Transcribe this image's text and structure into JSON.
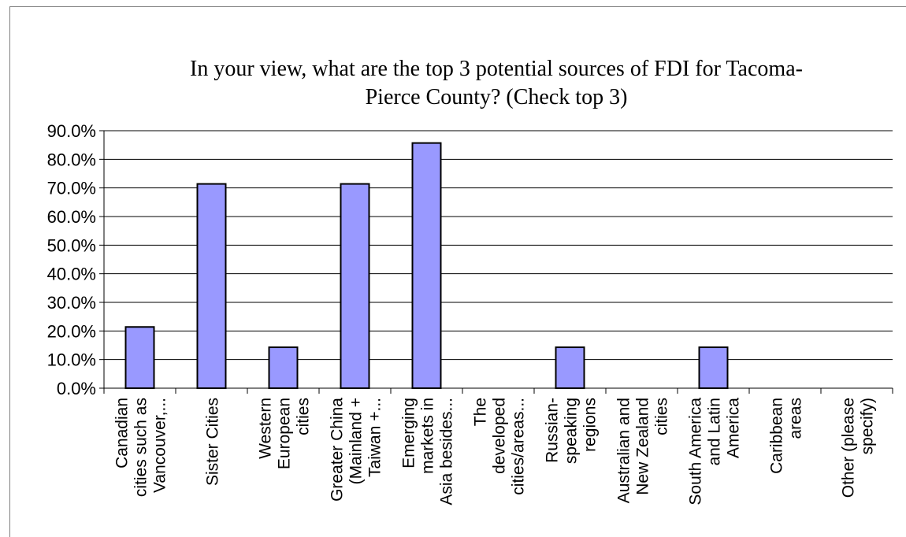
{
  "chart_data": {
    "type": "bar",
    "title_lines": [
      "In your view, what are the top 3 potential sources of FDI for Tacoma-",
      "Pierce County? (Check top 3)"
    ],
    "xlabel": "",
    "ylabel": "",
    "ylim": [
      0,
      90
    ],
    "yticks": [
      "0.0%",
      "10.0%",
      "20.0%",
      "30.0%",
      "40.0%",
      "50.0%",
      "60.0%",
      "70.0%",
      "80.0%",
      "90.0%"
    ],
    "grid": true,
    "legend": "none",
    "categories": [
      [
        "Canadian",
        "cities such as",
        "Vancouver,..."
      ],
      [
        "Sister Cities"
      ],
      [
        "Western",
        "European",
        "cities"
      ],
      [
        "Greater China",
        "(Mainland +",
        "Taiwan +..."
      ],
      [
        "Emerging",
        "markets in",
        "Asia besides..."
      ],
      [
        "The",
        "developed",
        "cities/areas..."
      ],
      [
        "Russian-",
        "speaking",
        "regions"
      ],
      [
        "Australian and",
        "New Zealand",
        "cities"
      ],
      [
        "South America",
        "and Latin",
        "America"
      ],
      [
        "Caribbean",
        "areas"
      ],
      [
        "Other (please",
        "specify)"
      ]
    ],
    "values": [
      21.4,
      71.4,
      14.3,
      71.4,
      85.7,
      0,
      14.3,
      0,
      14.3,
      0,
      0
    ],
    "bar_color": "#9999ff",
    "bar_edge": "#000000"
  }
}
